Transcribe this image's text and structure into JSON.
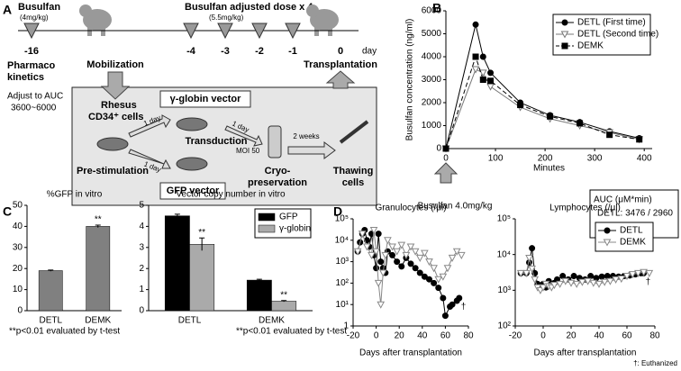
{
  "panel_labels": [
    "A",
    "B",
    "C",
    "D"
  ],
  "diagram": {
    "title": "Busulfan",
    "dose": "(4mg/kg)",
    "adjusted": "Busulfan adjusted dose x 4",
    "adjusted_dose": "(5.5mg/kg)",
    "days": [
      "-16",
      "-4",
      "-3",
      "-2",
      "-1",
      "0"
    ],
    "day_unit": "day",
    "pk": [
      "Pharmaco",
      "kinetics"
    ],
    "auc": [
      "Adjust to AUC",
      "3600~6000"
    ],
    "mobilization": "Mobilization",
    "transplantation": "Transplantation",
    "cells": [
      "Rhesus",
      "CD34⁺ cells"
    ],
    "globin_vector": "γ-globin vector",
    "gfp_vector": "GFP vector",
    "prestim": "Pre-stimulation",
    "transduction": "Transduction",
    "moi": "MOI 50",
    "one_day": [
      "1 day",
      "1 day",
      "1 day"
    ],
    "two_weeks": "2 weeks",
    "cryo": [
      "Cryo-",
      "preservation"
    ],
    "thawing": [
      "Thawing",
      "cells"
    ]
  },
  "chart_data": [
    {
      "type": "line",
      "ylabel": "Busulfan concentration (ng/ml)",
      "xlabel": "Minutes",
      "x": [
        0,
        60,
        75,
        90,
        150,
        210,
        270,
        330,
        390
      ],
      "series": [
        {
          "name": "DETL (First time)",
          "color": "#000000",
          "marker": "circle",
          "dash": false,
          "values": [
            0,
            5400,
            4000,
            3300,
            2000,
            1450,
            1150,
            750,
            450
          ]
        },
        {
          "name": "DETL (Second time)",
          "color": "#777777",
          "marker": "triangle",
          "dash": false,
          "values": [
            0,
            3450,
            3300,
            2700,
            1800,
            1300,
            1000,
            700,
            400
          ]
        },
        {
          "name": "DEMK",
          "color": "#000000",
          "marker": "square",
          "dash": true,
          "values": [
            0,
            4000,
            3000,
            2950,
            1900,
            1400,
            1100,
            600,
            400
          ]
        }
      ],
      "xlim": [
        0,
        416
      ],
      "xticks": [
        0,
        100,
        200,
        300,
        400
      ],
      "ylim": [
        0,
        6000
      ],
      "yticks": [
        0,
        1000,
        2000,
        3000,
        4000,
        5000,
        6000
      ],
      "legend": "top-right",
      "arrow_label": "Busulfan 4.0mg/kg",
      "auc_box": [
        "AUC (μM*min)",
        "DETL: 3476 / 2960",
        "DEMK: 3237"
      ]
    },
    {
      "type": "bar",
      "title": "%GFP in vitro",
      "categories": [
        "DETL",
        "DEMK"
      ],
      "values": [
        19,
        40
      ],
      "errors": [
        0.3,
        0.6
      ],
      "sig": [
        null,
        "**"
      ],
      "color": "#808080",
      "ylim": [
        0,
        50
      ],
      "yticks": [
        0,
        10,
        20,
        30,
        40,
        50
      ],
      "note": "**p<0.01 evaluated by t-test"
    },
    {
      "type": "bar",
      "title": "Vector copy number in vitro",
      "categories": [
        "DETL",
        "DEMK"
      ],
      "series": [
        {
          "name": "GFP",
          "color": "#000000",
          "values": [
            4.5,
            1.45
          ],
          "errors": [
            0.08,
            0.04
          ]
        },
        {
          "name": "γ-globin",
          "color": "#aaaaaa",
          "values": [
            3.15,
            0.45
          ],
          "errors": [
            0.3,
            0.03
          ],
          "sig": [
            "**",
            "**"
          ]
        }
      ],
      "ylim": [
        0,
        5
      ],
      "yticks": [
        0,
        1,
        2,
        3,
        4,
        5
      ],
      "legend": "top-right",
      "note": "**p<0.01 evaluated by t-test"
    },
    {
      "type": "line",
      "title": "Granulocytes (/μl)",
      "xlabel": "Days after transplantation",
      "log_y": true,
      "series": [
        {
          "color": "#000000",
          "marker": "circle",
          "dash": false,
          "end_label": "†",
          "x": [
            -16,
            -14,
            -12,
            -10,
            -8,
            -6,
            -4,
            -2,
            0,
            2,
            4,
            6,
            8,
            10,
            14,
            18,
            22,
            26,
            30,
            34,
            38,
            42,
            46,
            50,
            54,
            58,
            60,
            64,
            66,
            70,
            72
          ],
          "values": [
            3000,
            8000,
            20000,
            30000,
            10000,
            5000,
            20000,
            2000,
            500,
            20000,
            1000,
            500,
            300,
            3000,
            2000,
            1000,
            600,
            1500,
            800,
            500,
            300,
            200,
            150,
            100,
            60,
            20,
            3,
            8,
            10,
            15,
            20
          ]
        },
        {
          "color": "#888888",
          "marker": "triangle",
          "dash": false,
          "x": [
            -16,
            -12,
            -8,
            -4,
            -2,
            0,
            2,
            4,
            6,
            8,
            10,
            14,
            18,
            22,
            26,
            30,
            34,
            38,
            42,
            46,
            50,
            54,
            58,
            62,
            66,
            70,
            74
          ],
          "values": [
            3000,
            20000,
            5000,
            2000,
            30000,
            3000,
            100,
            10,
            300,
            2000,
            10000,
            5000,
            3000,
            6000,
            2000,
            5000,
            3000,
            1500,
            2500,
            1000,
            500,
            150,
            200,
            500,
            1500,
            3000,
            2000
          ]
        }
      ],
      "xlim": [
        -20,
        80
      ],
      "xticks": [
        -20,
        0,
        20,
        40,
        60,
        80
      ],
      "ylim": [
        1,
        100000
      ],
      "yticks": [
        1,
        {
          "value": 10,
          "label": "10¹"
        },
        {
          "value": 100,
          "label": "10²"
        },
        {
          "value": 1000,
          "label": "10³"
        },
        {
          "value": 10000,
          "label": "10⁴"
        },
        {
          "value": 100000,
          "label": "10⁵"
        }
      ]
    },
    {
      "type": "line",
      "title": "Lymphocytes (/μl)",
      "xlabel": "Days after transplantation",
      "log_y": true,
      "series": [
        {
          "name": "DETL",
          "color": "#000000",
          "marker": "circle",
          "dash": false,
          "end_label": "†",
          "x": [
            -16,
            -12,
            -10,
            -8,
            -6,
            -4,
            -2,
            0,
            2,
            4,
            6,
            8,
            10,
            14,
            18,
            22,
            26,
            30,
            34,
            38,
            42,
            46,
            50,
            54,
            58,
            62,
            66,
            70,
            72
          ],
          "values": [
            3000,
            3000,
            6000,
            15000,
            3000,
            1500,
            1200,
            1500,
            1200,
            1800,
            1400,
            1600,
            2000,
            2500,
            2000,
            2500,
            2200,
            2000,
            2500,
            2200,
            2400,
            2500,
            2500,
            2400,
            2500,
            2600,
            2800,
            3000,
            3000
          ]
        },
        {
          "name": "DEMK",
          "color": "#888888",
          "marker": "triangle",
          "dash": false,
          "x": [
            -16,
            -12,
            -10,
            -8,
            -6,
            -4,
            -2,
            0,
            2,
            4,
            6,
            8,
            12,
            16,
            20,
            24,
            28,
            32,
            36,
            40,
            44,
            48,
            52,
            56,
            60,
            64,
            68,
            72,
            76
          ],
          "values": [
            3000,
            3000,
            8000,
            4000,
            2000,
            1200,
            1000,
            1200,
            1500,
            1300,
            1200,
            1400,
            1500,
            1800,
            1600,
            1500,
            1700,
            1800,
            1600,
            1500,
            1700,
            1800,
            2000,
            2100,
            2500,
            2800,
            3000,
            3200,
            3000
          ]
        }
      ],
      "xlim": [
        -20,
        80
      ],
      "xticks": [
        -20,
        0,
        20,
        40,
        60,
        80
      ],
      "ylim": [
        100,
        100000
      ],
      "yticks": [
        {
          "value": 100,
          "label": "10²"
        },
        {
          "value": 1000,
          "label": "10³"
        },
        {
          "value": 10000,
          "label": "10⁴"
        },
        {
          "value": 100000,
          "label": "10⁵"
        }
      ],
      "legend": "top-right"
    }
  ],
  "footnote": "†: Euthanized"
}
